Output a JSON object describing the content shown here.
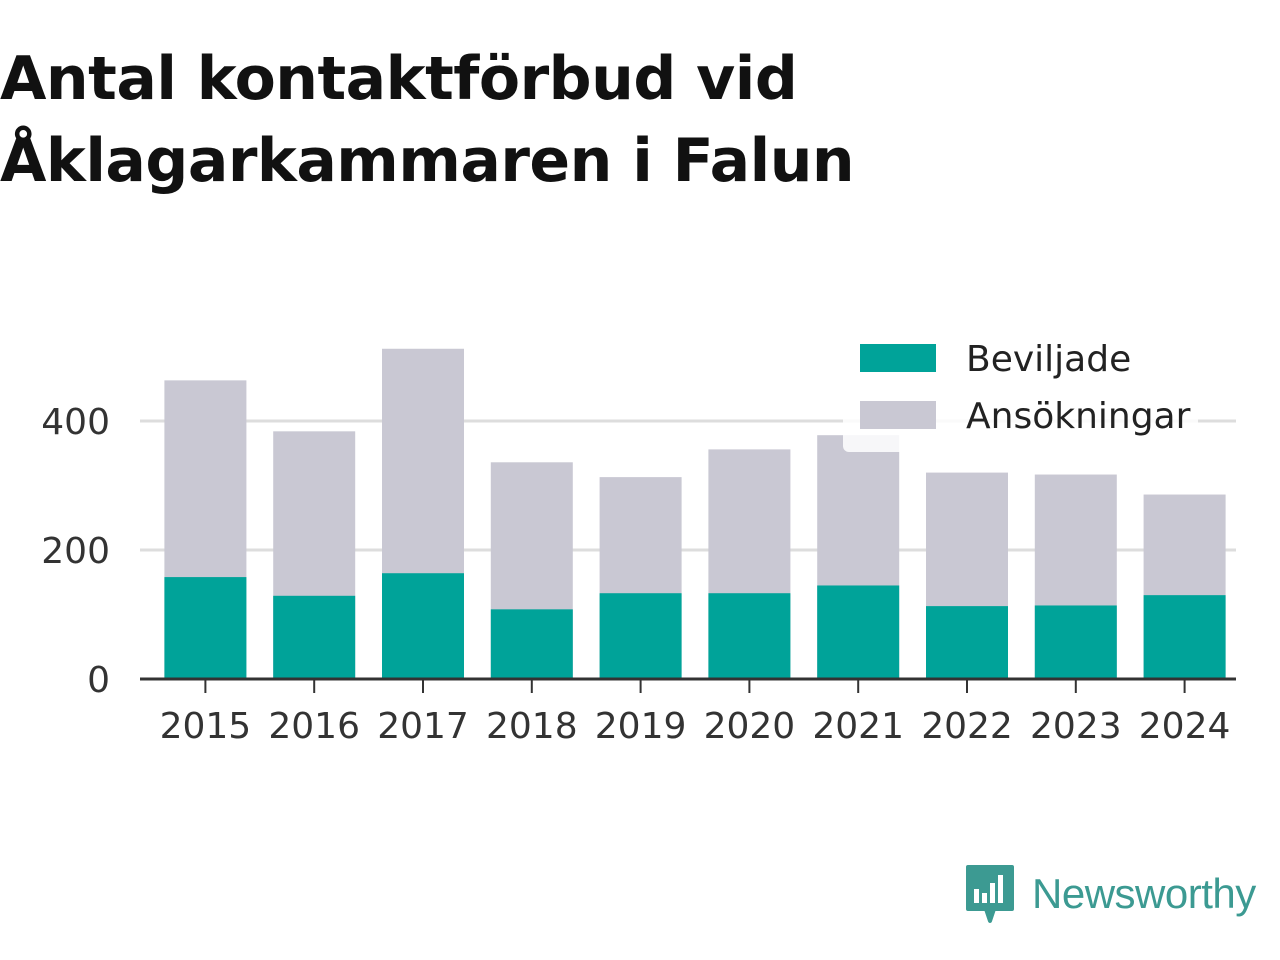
{
  "title_lines": [
    "Antal kontaktförbud vid",
    "Åklagarkammaren i Falun"
  ],
  "brand": {
    "name": "Newsworthy",
    "icon": "newsworthy-logo-icon"
  },
  "colors": {
    "granted": "#00a399",
    "applications": "#c9c8d3",
    "grid": "#dddddd",
    "axis": "#333333",
    "brand": "#3c9a92"
  },
  "chart_data": {
    "type": "bar",
    "stacked": false,
    "title": "Antal kontaktförbud vid Åklagarkammaren i Falun",
    "categories": [
      "2015",
      "2016",
      "2017",
      "2018",
      "2019",
      "2020",
      "2021",
      "2022",
      "2023",
      "2024"
    ],
    "series": [
      {
        "name": "Ansökningar",
        "values": [
          463,
          384,
          512,
          336,
          313,
          356,
          378,
          320,
          317,
          286
        ]
      },
      {
        "name": "Beviljade",
        "values": [
          158,
          129,
          164,
          108,
          133,
          133,
          145,
          113,
          114,
          130
        ]
      }
    ],
    "yticks": [
      0,
      200,
      400
    ],
    "ylim": [
      0,
      560
    ],
    "grid": true,
    "legend": {
      "position": "top-right",
      "order": [
        "Beviljade",
        "Ansökningar"
      ]
    }
  }
}
